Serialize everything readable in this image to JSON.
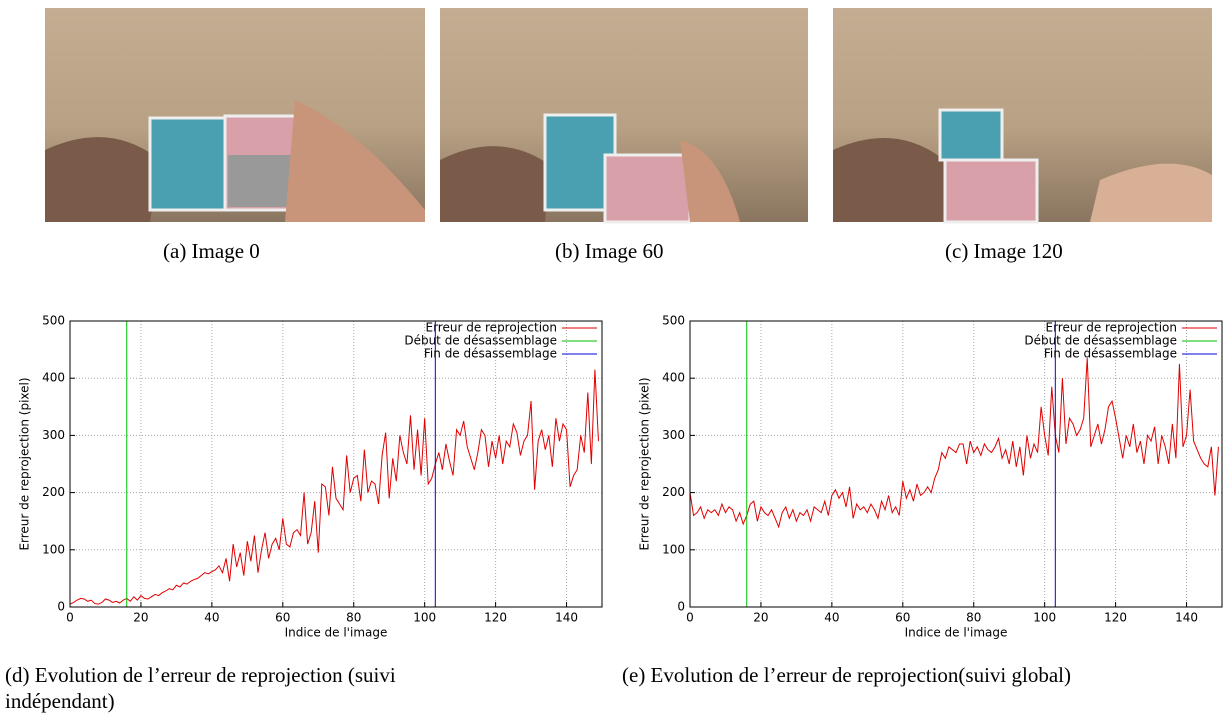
{
  "figures": [
    {
      "caption": "(a)  Image 0"
    },
    {
      "caption": "(b)  Image 60"
    },
    {
      "caption": "(c)  Image 120"
    }
  ],
  "chart_data": [
    {
      "type": "line",
      "caption": "(d)  Evolution de l’erreur de reprojection (suivi indépendant)",
      "xlabel": "Indice de l'image",
      "ylabel": "Erreur de reprojection (pixel)",
      "xlim": [
        0,
        150
      ],
      "xticks": [
        0,
        20,
        40,
        60,
        80,
        100,
        120,
        140
      ],
      "ylim": [
        0,
        500
      ],
      "yticks": [
        0,
        100,
        200,
        300,
        400,
        500
      ],
      "grid": true,
      "legend": "top-right",
      "x": [
        0,
        1,
        2,
        3,
        4,
        5,
        6,
        7,
        8,
        9,
        10,
        11,
        12,
        13,
        14,
        15,
        16,
        17,
        18,
        19,
        20,
        21,
        22,
        23,
        24,
        25,
        26,
        27,
        28,
        29,
        30,
        31,
        32,
        33,
        34,
        35,
        36,
        37,
        38,
        39,
        40,
        41,
        42,
        43,
        44,
        45,
        46,
        47,
        48,
        49,
        50,
        51,
        52,
        53,
        54,
        55,
        56,
        57,
        58,
        59,
        60,
        61,
        62,
        63,
        64,
        65,
        66,
        67,
        68,
        69,
        70,
        71,
        72,
        73,
        74,
        75,
        76,
        77,
        78,
        79,
        80,
        81,
        82,
        83,
        84,
        85,
        86,
        87,
        88,
        89,
        90,
        91,
        92,
        93,
        94,
        95,
        96,
        97,
        98,
        99,
        100,
        101,
        102,
        103,
        104,
        105,
        106,
        107,
        108,
        109,
        110,
        111,
        112,
        113,
        114,
        115,
        116,
        117,
        118,
        119,
        120,
        121,
        122,
        123,
        124,
        125,
        126,
        127,
        128,
        129,
        130,
        131,
        132,
        133,
        134,
        135,
        136,
        137,
        138,
        139,
        140,
        141,
        142,
        143,
        144,
        145,
        146,
        147,
        148,
        149
      ],
      "series": [
        {
          "name": "Erreur de reprojection",
          "color": "#e00000",
          "values": [
            5,
            8,
            12,
            15,
            14,
            10,
            12,
            6,
            5,
            8,
            14,
            12,
            8,
            10,
            7,
            12,
            15,
            10,
            18,
            12,
            20,
            15,
            14,
            18,
            22,
            20,
            25,
            28,
            32,
            30,
            38,
            35,
            42,
            40,
            45,
            48,
            50,
            55,
            60,
            58,
            62,
            65,
            72,
            60,
            85,
            45,
            110,
            70,
            95,
            55,
            115,
            80,
            125,
            60,
            100,
            130,
            85,
            110,
            120,
            100,
            155,
            110,
            105,
            130,
            135,
            125,
            200,
            110,
            130,
            185,
            95,
            215,
            210,
            160,
            245,
            190,
            180,
            170,
            265,
            200,
            225,
            230,
            185,
            275,
            200,
            220,
            215,
            180,
            265,
            305,
            190,
            260,
            220,
            300,
            270,
            250,
            335,
            240,
            310,
            230,
            330,
            215,
            225,
            250,
            270,
            240,
            285,
            255,
            230,
            310,
            300,
            325,
            280,
            260,
            240,
            270,
            310,
            300,
            245,
            290,
            260,
            300,
            250,
            290,
            280,
            320,
            305,
            265,
            290,
            300,
            360,
            205,
            290,
            310,
            275,
            300,
            245,
            330,
            290,
            320,
            310,
            210,
            230,
            240,
            300,
            270,
            375,
            250,
            415,
            290
          ]
        },
        {
          "name": "Début de désassemblage",
          "color": "#00c000",
          "x": 16
        },
        {
          "name": "Fin de désassemblage",
          "color": "#0000e0",
          "x": 103
        }
      ]
    },
    {
      "type": "line",
      "caption": "(e)  Evolution de l’erreur de reprojection(suivi global)",
      "xlabel": "Indice de l'image",
      "ylabel": "Erreur de reprojection (pixel)",
      "xlim": [
        0,
        150
      ],
      "xticks": [
        0,
        20,
        40,
        60,
        80,
        100,
        120,
        140
      ],
      "ylim": [
        0,
        500
      ],
      "yticks": [
        0,
        100,
        200,
        300,
        400,
        500
      ],
      "grid": true,
      "legend": "top-right",
      "x": [
        0,
        1,
        2,
        3,
        4,
        5,
        6,
        7,
        8,
        9,
        10,
        11,
        12,
        13,
        14,
        15,
        16,
        17,
        18,
        19,
        20,
        21,
        22,
        23,
        24,
        25,
        26,
        27,
        28,
        29,
        30,
        31,
        32,
        33,
        34,
        35,
        36,
        37,
        38,
        39,
        40,
        41,
        42,
        43,
        44,
        45,
        46,
        47,
        48,
        49,
        50,
        51,
        52,
        53,
        54,
        55,
        56,
        57,
        58,
        59,
        60,
        61,
        62,
        63,
        64,
        65,
        66,
        67,
        68,
        69,
        70,
        71,
        72,
        73,
        74,
        75,
        76,
        77,
        78,
        79,
        80,
        81,
        82,
        83,
        84,
        85,
        86,
        87,
        88,
        89,
        90,
        91,
        92,
        93,
        94,
        95,
        96,
        97,
        98,
        99,
        100,
        101,
        102,
        103,
        104,
        105,
        106,
        107,
        108,
        109,
        110,
        111,
        112,
        113,
        114,
        115,
        116,
        117,
        118,
        119,
        120,
        121,
        122,
        123,
        124,
        125,
        126,
        127,
        128,
        129,
        130,
        131,
        132,
        133,
        134,
        135,
        136,
        137,
        138,
        139,
        140,
        141,
        142,
        143,
        144,
        145,
        146,
        147,
        148,
        149
      ],
      "series": [
        {
          "name": "Erreur de reprojection",
          "color": "#e00000",
          "values": [
            200,
            160,
            165,
            175,
            155,
            170,
            165,
            170,
            160,
            180,
            165,
            175,
            170,
            150,
            165,
            145,
            160,
            180,
            185,
            150,
            175,
            165,
            160,
            170,
            155,
            140,
            165,
            175,
            155,
            170,
            150,
            165,
            160,
            170,
            150,
            175,
            170,
            165,
            185,
            160,
            195,
            205,
            190,
            200,
            175,
            210,
            155,
            180,
            170,
            175,
            165,
            180,
            170,
            155,
            185,
            170,
            195,
            165,
            175,
            160,
            220,
            190,
            205,
            185,
            215,
            195,
            200,
            210,
            200,
            225,
            240,
            270,
            260,
            280,
            275,
            270,
            285,
            285,
            250,
            290,
            270,
            280,
            265,
            285,
            275,
            270,
            280,
            295,
            260,
            275,
            250,
            290,
            245,
            280,
            230,
            300,
            260,
            285,
            270,
            350,
            300,
            265,
            385,
            300,
            270,
            400,
            285,
            330,
            320,
            300,
            310,
            330,
            435,
            280,
            300,
            320,
            285,
            310,
            350,
            360,
            330,
            295,
            260,
            300,
            280,
            320,
            270,
            290,
            250,
            300,
            290,
            315,
            250,
            300,
            280,
            250,
            320,
            260,
            425,
            280,
            300,
            380,
            290,
            275,
            260,
            250,
            245,
            280,
            195,
            280
          ]
        },
        {
          "name": "Début de désassemblage",
          "color": "#00c000",
          "x": 16
        },
        {
          "name": "Fin de désassemblage",
          "color": "#0000e0",
          "x": 103
        }
      ]
    }
  ]
}
